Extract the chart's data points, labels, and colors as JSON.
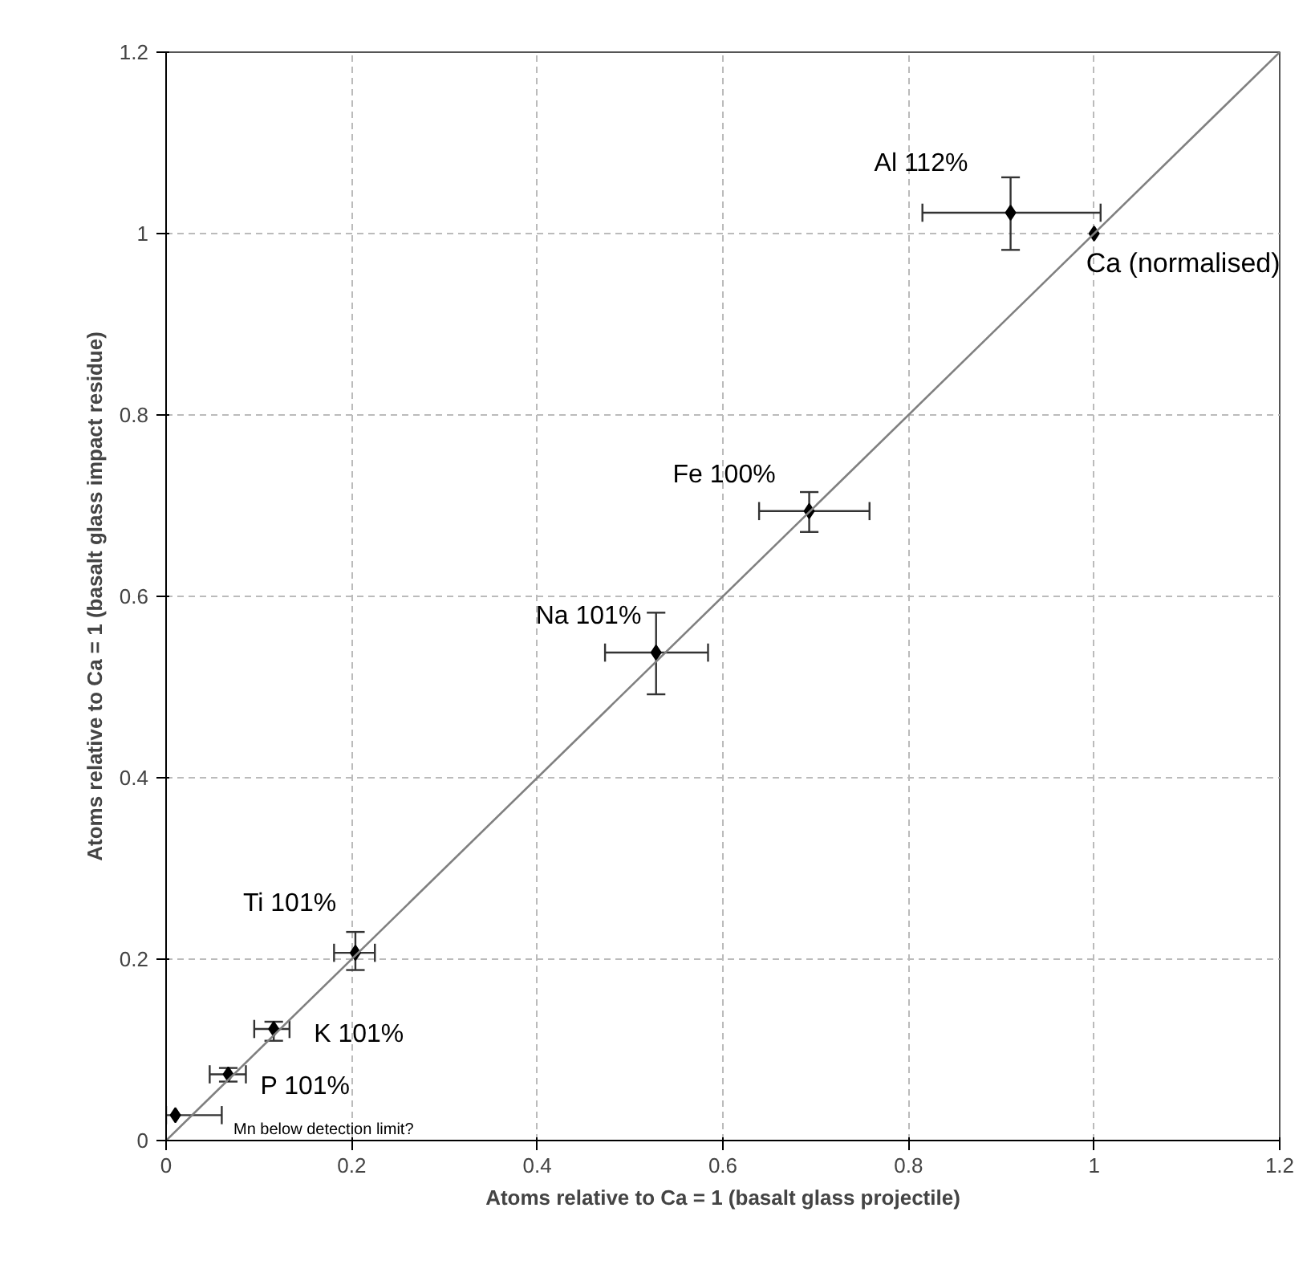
{
  "chart_data": {
    "type": "scatter",
    "xlabel": "Atoms relative to Ca = 1 (basalt glass projectile)",
    "ylabel": "Atoms relative to Ca = 1 (basalt glass impact residue)",
    "xlim": [
      0,
      1.2
    ],
    "ylim": [
      0,
      1.2
    ],
    "xticks": [
      0,
      0.2,
      0.4,
      0.6,
      0.8,
      1,
      1.2
    ],
    "yticks": [
      0,
      0.2,
      0.4,
      0.6,
      0.8,
      1,
      1.2
    ],
    "grid": true,
    "marker": "diamond",
    "series": [
      {
        "color": "#000000",
        "x": [
          1.0,
          0.91,
          0.693,
          0.528,
          0.204,
          0.116,
          0.067,
          0.01
        ],
        "values": [
          1.0,
          1.023,
          0.694,
          0.538,
          0.207,
          0.123,
          0.073,
          0.028
        ],
        "errors": [
          null,
          [
            0.982,
            1.062
          ],
          [
            0.671,
            0.715
          ],
          [
            0.492,
            0.582
          ],
          [
            0.188,
            0.23
          ],
          [
            0.11,
            0.131
          ],
          [
            0.065,
            0.08
          ],
          null
        ],
        "xerrors": [
          null,
          [
            0.815,
            1.007
          ],
          [
            0.639,
            0.758
          ],
          [
            0.473,
            0.584
          ],
          [
            0.181,
            0.225
          ],
          [
            0.095,
            0.133
          ],
          [
            0.047,
            0.086
          ],
          [
            0.0,
            0.06
          ]
        ]
      },
      {
        "type": "line",
        "marker": "none",
        "color": "#808080",
        "x": [
          0,
          1.2
        ],
        "values": [
          0,
          1.2
        ]
      }
    ],
    "annotations": [
      {
        "text": "Ca (normalised)",
        "x": 1.0,
        "y": 1.0
      },
      {
        "text": "Al 112%",
        "x": 0.91,
        "y": 1.023
      },
      {
        "text": "Fe 100%",
        "x": 0.693,
        "y": 0.694
      },
      {
        "text": "Na 101%",
        "x": 0.528,
        "y": 0.538
      },
      {
        "text": "Ti 101%",
        "x": 0.204,
        "y": 0.207
      },
      {
        "text": "K 101%",
        "x": 0.116,
        "y": 0.123
      },
      {
        "text": "P 101%",
        "x": 0.067,
        "y": 0.073
      },
      "Mn below detection limit?"
    ]
  }
}
